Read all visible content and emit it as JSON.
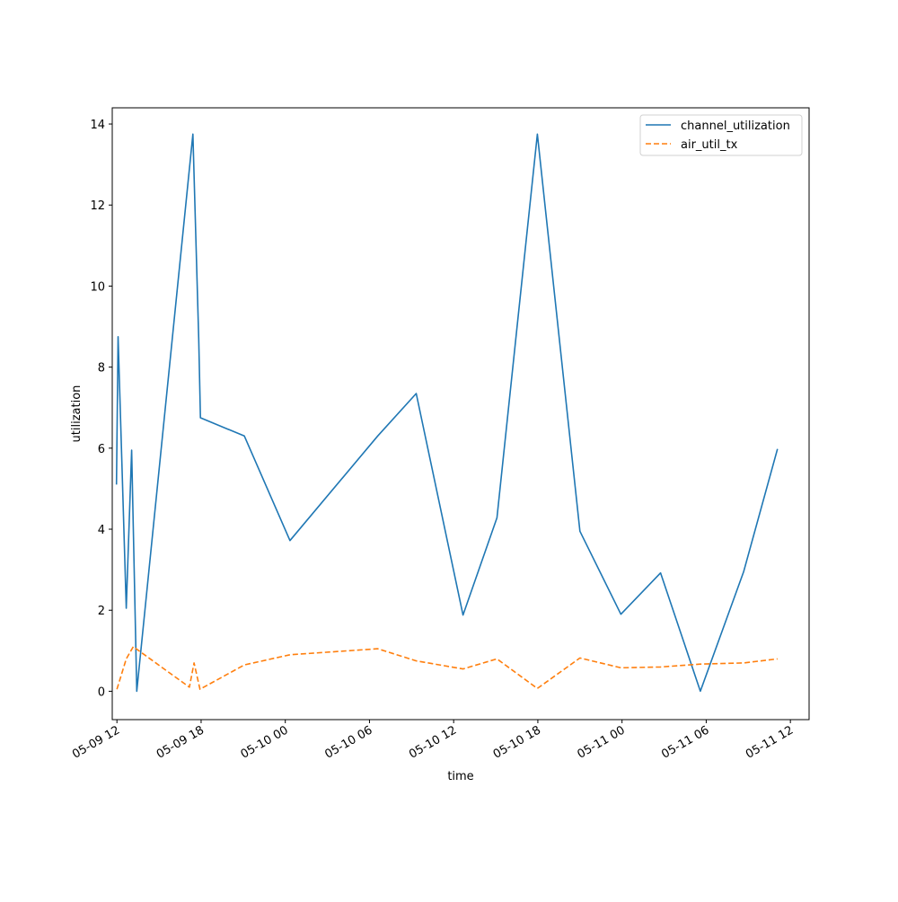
{
  "chart_data": {
    "type": "line",
    "title": "",
    "xlabel": "time",
    "ylabel": "utilization",
    "x_axis_type": "datetime",
    "x_tick_labels": [
      "05-09 12",
      "05-09 18",
      "05-10 00",
      "05-10 06",
      "05-10 12",
      "05-10 18",
      "05-11 00",
      "05-11 06",
      "05-11 12"
    ],
    "y_ticks": [
      0,
      2,
      4,
      6,
      8,
      10,
      12,
      14
    ],
    "xlim": [
      "2024-05-09T11:40",
      "2024-05-11T13:20"
    ],
    "ylim": [
      -0.7,
      14.4
    ],
    "grid": false,
    "legend": "top-right",
    "series": [
      {
        "name": "channel_utilization",
        "color": "#1f77b4",
        "style": "solid",
        "points": [
          [
            "2024-05-09T11:58",
            5.1
          ],
          [
            "2024-05-09T12:05",
            8.75
          ],
          [
            "2024-05-09T12:40",
            2.05
          ],
          [
            "2024-05-09T13:03",
            5.95
          ],
          [
            "2024-05-09T13:25",
            0.0
          ],
          [
            "2024-05-09T17:25",
            13.75
          ],
          [
            "2024-05-09T17:50",
            8.7
          ],
          [
            "2024-05-09T17:57",
            6.75
          ],
          [
            "2024-05-09T21:05",
            6.3
          ],
          [
            "2024-05-10T00:20",
            3.72
          ],
          [
            "2024-05-10T06:35",
            6.3
          ],
          [
            "2024-05-10T09:20",
            7.35
          ],
          [
            "2024-05-10T12:40",
            1.88
          ],
          [
            "2024-05-10T15:05",
            4.28
          ],
          [
            "2024-05-10T17:58",
            13.75
          ],
          [
            "2024-05-10T21:00",
            3.95
          ],
          [
            "2024-05-10T23:55",
            1.9
          ],
          [
            "2024-05-11T02:45",
            2.92
          ],
          [
            "2024-05-11T05:35",
            0.0
          ],
          [
            "2024-05-11T08:40",
            2.95
          ],
          [
            "2024-05-11T11:05",
            5.98
          ]
        ]
      },
      {
        "name": "air_util_tx",
        "color": "#ff7f0e",
        "style": "dashed",
        "points": [
          [
            "2024-05-09T12:00",
            0.05
          ],
          [
            "2024-05-09T12:40",
            0.8
          ],
          [
            "2024-05-09T13:10",
            1.1
          ],
          [
            "2024-05-09T17:10",
            0.1
          ],
          [
            "2024-05-09T17:30",
            0.7
          ],
          [
            "2024-05-09T17:55",
            0.05
          ],
          [
            "2024-05-09T21:05",
            0.65
          ],
          [
            "2024-05-10T00:20",
            0.9
          ],
          [
            "2024-05-10T06:35",
            1.05
          ],
          [
            "2024-05-10T09:20",
            0.75
          ],
          [
            "2024-05-10T12:40",
            0.55
          ],
          [
            "2024-05-10T15:05",
            0.8
          ],
          [
            "2024-05-10T17:58",
            0.07
          ],
          [
            "2024-05-10T21:00",
            0.82
          ],
          [
            "2024-05-10T23:55",
            0.58
          ],
          [
            "2024-05-11T02:45",
            0.6
          ],
          [
            "2024-05-11T05:35",
            0.67
          ],
          [
            "2024-05-11T08:40",
            0.7
          ],
          [
            "2024-05-11T11:05",
            0.8
          ]
        ]
      }
    ]
  }
}
